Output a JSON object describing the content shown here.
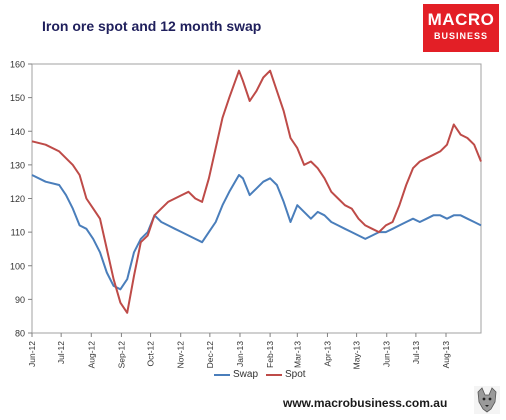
{
  "title": "Iron ore spot and 12 month swap",
  "logo": {
    "line1": "MACRO",
    "line2": "BUSINESS",
    "color": "#e31f26"
  },
  "footer": "www.macrobusiness.com.au",
  "colors": {
    "swap": "#4a7ebb",
    "spot": "#be4b48"
  },
  "chart_data": {
    "type": "line",
    "title": "Iron ore spot and 12 month swap",
    "ylim": [
      80,
      160
    ],
    "yticks": [
      80,
      90,
      100,
      110,
      120,
      130,
      140,
      150,
      160
    ],
    "grid": false,
    "legend": "bottom",
    "xlabels": [
      "Jun-12",
      "Jul-12",
      "Aug-12",
      "Sep-12",
      "Oct-12",
      "Nov-12",
      "Dec-12",
      "Jan-13",
      "Feb-13",
      "Mar-13",
      "Apr-13",
      "May-13",
      "Jun-13",
      "Jul-13",
      "Aug-13"
    ],
    "x": [
      "2012-06-01",
      "2012-06-15",
      "2012-06-29",
      "2012-07-06",
      "2012-07-13",
      "2012-07-20",
      "2012-07-27",
      "2012-08-03",
      "2012-08-10",
      "2012-08-17",
      "2012-08-24",
      "2012-08-31",
      "2012-09-07",
      "2012-09-14",
      "2012-09-21",
      "2012-09-28",
      "2012-10-05",
      "2012-10-12",
      "2012-10-19",
      "2012-10-26",
      "2012-11-02",
      "2012-11-09",
      "2012-11-16",
      "2012-11-23",
      "2012-11-30",
      "2012-12-07",
      "2012-12-14",
      "2012-12-21",
      "2012-12-31",
      "2013-01-04",
      "2013-01-11",
      "2013-01-18",
      "2013-01-25",
      "2013-02-01",
      "2013-02-08",
      "2013-02-15",
      "2013-02-22",
      "2013-03-01",
      "2013-03-08",
      "2013-03-15",
      "2013-03-22",
      "2013-03-29",
      "2013-04-05",
      "2013-04-12",
      "2013-04-19",
      "2013-04-26",
      "2013-05-03",
      "2013-05-10",
      "2013-05-17",
      "2013-05-24",
      "2013-05-31",
      "2013-06-07",
      "2013-06-14",
      "2013-06-21",
      "2013-06-28",
      "2013-07-05",
      "2013-07-12",
      "2013-07-19",
      "2013-07-26",
      "2013-08-02",
      "2013-08-09",
      "2013-08-16",
      "2013-08-23",
      "2013-08-30",
      "2013-09-06"
    ],
    "series": [
      {
        "name": "Swap",
        "values": [
          127,
          125,
          124,
          121,
          117,
          112,
          111,
          108,
          104,
          98,
          94,
          93,
          96,
          104,
          108,
          110,
          115,
          113,
          112,
          111,
          110,
          109,
          108,
          107,
          110,
          113,
          118,
          122,
          127,
          126,
          121,
          123,
          125,
          126,
          124,
          119,
          113,
          118,
          116,
          114,
          116,
          115,
          113,
          112,
          111,
          110,
          109,
          108,
          109,
          110,
          110,
          111,
          112,
          113,
          114,
          113,
          114,
          115,
          115,
          114,
          115,
          115,
          114,
          113,
          112
        ]
      },
      {
        "name": "Spot",
        "values": [
          137,
          136,
          134,
          132,
          130,
          127,
          120,
          117,
          114,
          105,
          96,
          89,
          86,
          97,
          107,
          109,
          115,
          117,
          119,
          120,
          121,
          122,
          120,
          119,
          126,
          135,
          144,
          150,
          158,
          155,
          149,
          152,
          156,
          158,
          152,
          146,
          138,
          135,
          130,
          131,
          129,
          126,
          122,
          120,
          118,
          117,
          114,
          112,
          111,
          110,
          112,
          113,
          118,
          124,
          129,
          131,
          132,
          133,
          134,
          136,
          142,
          139,
          138,
          136,
          131
        ]
      }
    ]
  }
}
